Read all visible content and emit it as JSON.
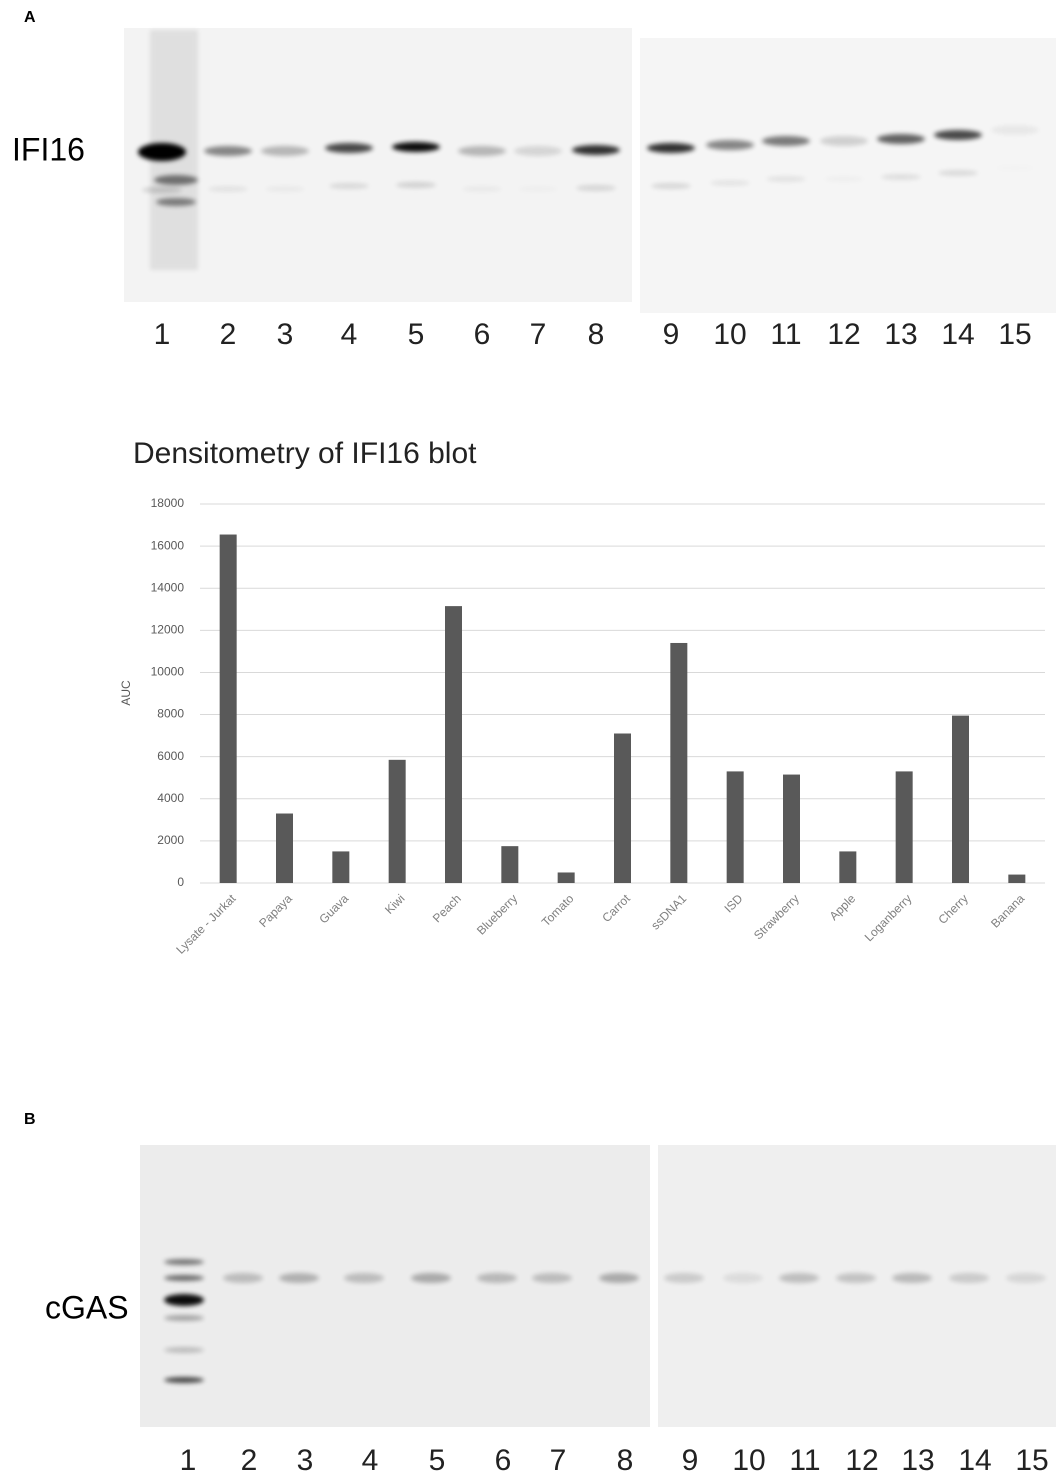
{
  "panel_a": {
    "label": "A",
    "blot_label": "IFI16",
    "lanes": [
      "1",
      "2",
      "3",
      "4",
      "5",
      "6",
      "7",
      "8",
      "9",
      "10",
      "11",
      "12",
      "13",
      "14",
      "15"
    ]
  },
  "chart_data": {
    "type": "bar",
    "title": "Densitometry of IFI16 blot",
    "y_label": "AUC",
    "categories": [
      "Lysate - Jurkat",
      "Papaya",
      "Guava",
      "Kiwi",
      "Peach",
      "Blueberry",
      "Tomato",
      "Carrot",
      "ssDNA1",
      "ISD",
      "Strawberry",
      "Apple",
      "Loganberry",
      "Cherry",
      "Banana"
    ],
    "values": [
      16550,
      3300,
      1500,
      5850,
      13150,
      1750,
      500,
      7100,
      11400,
      5300,
      5150,
      1500,
      5300,
      7950,
      400
    ],
    "color": "#595959",
    "ylim": [
      0,
      18000
    ],
    "yticks": [
      0,
      2000,
      4000,
      6000,
      8000,
      10000,
      12000,
      14000,
      16000,
      18000
    ],
    "grid": true
  },
  "panel_b": {
    "label": "B",
    "blot_label": "cGAS",
    "lanes": [
      "1",
      "2",
      "3",
      "4",
      "5",
      "6",
      "7",
      "8",
      "9",
      "10",
      "11",
      "12",
      "13",
      "14",
      "15"
    ]
  }
}
